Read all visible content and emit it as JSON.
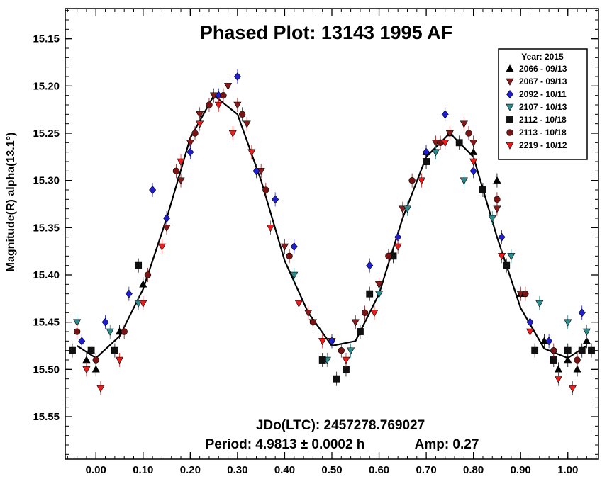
{
  "chart_data": {
    "type": "scatter",
    "title": "Phased Plot: 13143 1995 AF",
    "xlabel": "",
    "ylabel": "Magnitude(R) alpha(13.1°)",
    "xlim": [
      -0.065,
      1.065
    ],
    "ylim": [
      15.118,
      15.595
    ],
    "y_inverted": true,
    "grid": false,
    "legend_position": "top-right",
    "x_ticks": [
      0.0,
      0.1,
      0.2,
      0.3,
      0.4,
      0.5,
      0.6,
      0.7,
      0.8,
      0.9,
      1.0
    ],
    "x_tick_labels": [
      "0.00",
      "0.10",
      "0.20",
      "0.30",
      "0.40",
      "0.50",
      "0.60",
      "0.70",
      "0.80",
      "0.90",
      "1.00"
    ],
    "y_ticks": [
      15.15,
      15.2,
      15.25,
      15.3,
      15.35,
      15.4,
      15.45,
      15.5,
      15.55
    ],
    "y_tick_labels": [
      "15.15",
      "15.20",
      "15.25",
      "15.30",
      "15.35",
      "15.40",
      "15.45",
      "15.50",
      "15.55"
    ],
    "legend": {
      "title": "Year: 2015"
    },
    "annotations": {
      "epoch": "JDo(LTC): 2457278.769027",
      "period": "Period: 4.9813 ± 0.0002 h",
      "amplitude": "Amp: 0.27"
    },
    "fit_curve": {
      "x": [
        -0.04,
        0.0,
        0.05,
        0.1,
        0.15,
        0.2,
        0.25,
        0.3,
        0.35,
        0.4,
        0.45,
        0.5,
        0.55,
        0.6,
        0.65,
        0.7,
        0.75,
        0.8,
        0.85,
        0.9,
        0.95,
        1.0,
        1.04
      ],
      "y": [
        15.475,
        15.488,
        15.465,
        15.415,
        15.34,
        15.255,
        15.21,
        15.23,
        15.3,
        15.385,
        15.44,
        15.475,
        15.47,
        15.42,
        15.34,
        15.275,
        15.25,
        15.275,
        15.36,
        15.435,
        15.478,
        15.488,
        15.475
      ]
    },
    "series": [
      {
        "name": "2066 - 09/13",
        "marker": "triangle-up",
        "color": "#000000",
        "x": [
          -0.02,
          0.0,
          0.05,
          0.1,
          0.7,
          0.75,
          0.8,
          0.85,
          0.9,
          0.95,
          0.98,
          1.0,
          1.02,
          1.04
        ],
        "y": [
          15.49,
          15.5,
          15.46,
          15.41,
          15.27,
          15.25,
          15.27,
          15.3,
          15.42,
          15.47,
          15.5,
          15.49,
          15.5,
          15.47
        ]
      },
      {
        "name": "2067 - 09/13",
        "marker": "triangle-down",
        "color": "#8b1a1a",
        "x": [
          0.15,
          0.18,
          0.2,
          0.22,
          0.25,
          0.28,
          0.3,
          0.32,
          0.35,
          0.4,
          0.45,
          0.5,
          0.55,
          0.6,
          0.65,
          0.7,
          0.72,
          0.75,
          0.78,
          0.8,
          0.85,
          0.9
        ],
        "y": [
          15.35,
          15.3,
          15.26,
          15.23,
          15.21,
          15.2,
          15.22,
          15.24,
          15.29,
          15.37,
          15.44,
          15.47,
          15.45,
          15.41,
          15.33,
          15.28,
          15.26,
          15.25,
          15.24,
          15.26,
          15.33,
          15.42
        ]
      },
      {
        "name": "2092 - 10/11",
        "marker": "diamond",
        "color": "#1f1fd0",
        "x": [
          -0.03,
          0.02,
          0.07,
          0.12,
          0.15,
          0.2,
          0.26,
          0.3,
          0.34,
          0.38,
          0.42,
          0.5,
          0.58,
          0.64,
          0.7,
          0.74,
          0.8,
          0.86,
          0.92,
          0.96,
          1.03
        ],
        "y": [
          15.47,
          15.45,
          15.42,
          15.31,
          15.34,
          15.27,
          15.21,
          15.19,
          15.29,
          15.32,
          15.37,
          15.47,
          15.39,
          15.36,
          15.27,
          15.23,
          15.29,
          15.36,
          15.45,
          15.47,
          15.44
        ]
      },
      {
        "name": "2107 - 10/13",
        "marker": "triangle-down",
        "color": "#2a8c8c",
        "x": [
          -0.04,
          0.03,
          0.09,
          0.42,
          0.46,
          0.49,
          0.54,
          0.6,
          0.66,
          0.72,
          0.78,
          0.84,
          0.88,
          0.94,
          1.0,
          1.04
        ],
        "y": [
          15.45,
          15.46,
          15.43,
          15.4,
          15.45,
          15.49,
          15.48,
          15.42,
          15.33,
          15.27,
          15.3,
          15.34,
          15.38,
          15.43,
          15.45,
          15.46
        ]
      },
      {
        "name": "2112 - 10/18",
        "marker": "square",
        "color": "#111111",
        "x": [
          -0.05,
          -0.01,
          0.04,
          0.09,
          0.48,
          0.51,
          0.53,
          0.56,
          0.58,
          0.63,
          0.7,
          0.77,
          0.82,
          0.87,
          0.93,
          0.97,
          1.0,
          1.03,
          1.05
        ],
        "y": [
          15.48,
          15.48,
          15.48,
          15.39,
          15.49,
          15.51,
          15.5,
          15.46,
          15.42,
          15.38,
          15.28,
          15.26,
          15.31,
          15.39,
          15.48,
          15.49,
          15.48,
          15.48,
          15.48
        ]
      },
      {
        "name": "2113 - 10/18",
        "marker": "circle",
        "color": "#7a1414",
        "x": [
          -0.04,
          0.0,
          0.06,
          0.11,
          0.17,
          0.21,
          0.24,
          0.27,
          0.31,
          0.36,
          0.41,
          0.46,
          0.52,
          0.57,
          0.62,
          0.67,
          0.73,
          0.79,
          0.85,
          0.91,
          0.97,
          1.02
        ],
        "y": [
          15.46,
          15.49,
          15.46,
          15.4,
          15.29,
          15.25,
          15.22,
          15.21,
          15.23,
          15.31,
          15.38,
          15.45,
          15.48,
          15.44,
          15.38,
          15.3,
          15.26,
          15.25,
          15.32,
          15.42,
          15.48,
          15.49
        ]
      },
      {
        "name": "2219 - 10/12",
        "marker": "triangle-down",
        "color": "#ee1c1c",
        "x": [
          -0.02,
          0.01,
          0.05,
          0.1,
          0.14,
          0.18,
          0.22,
          0.26,
          0.29,
          0.33,
          0.37,
          0.43,
          0.48,
          0.53,
          0.59,
          0.64,
          0.69,
          0.74,
          0.8,
          0.86,
          0.92,
          0.98,
          1.01
        ],
        "y": [
          15.5,
          15.52,
          15.49,
          15.43,
          15.37,
          15.28,
          15.24,
          15.22,
          15.25,
          15.27,
          15.35,
          15.43,
          15.47,
          15.49,
          15.44,
          15.37,
          15.3,
          15.26,
          15.28,
          15.38,
          15.46,
          15.51,
          15.52
        ]
      }
    ]
  }
}
